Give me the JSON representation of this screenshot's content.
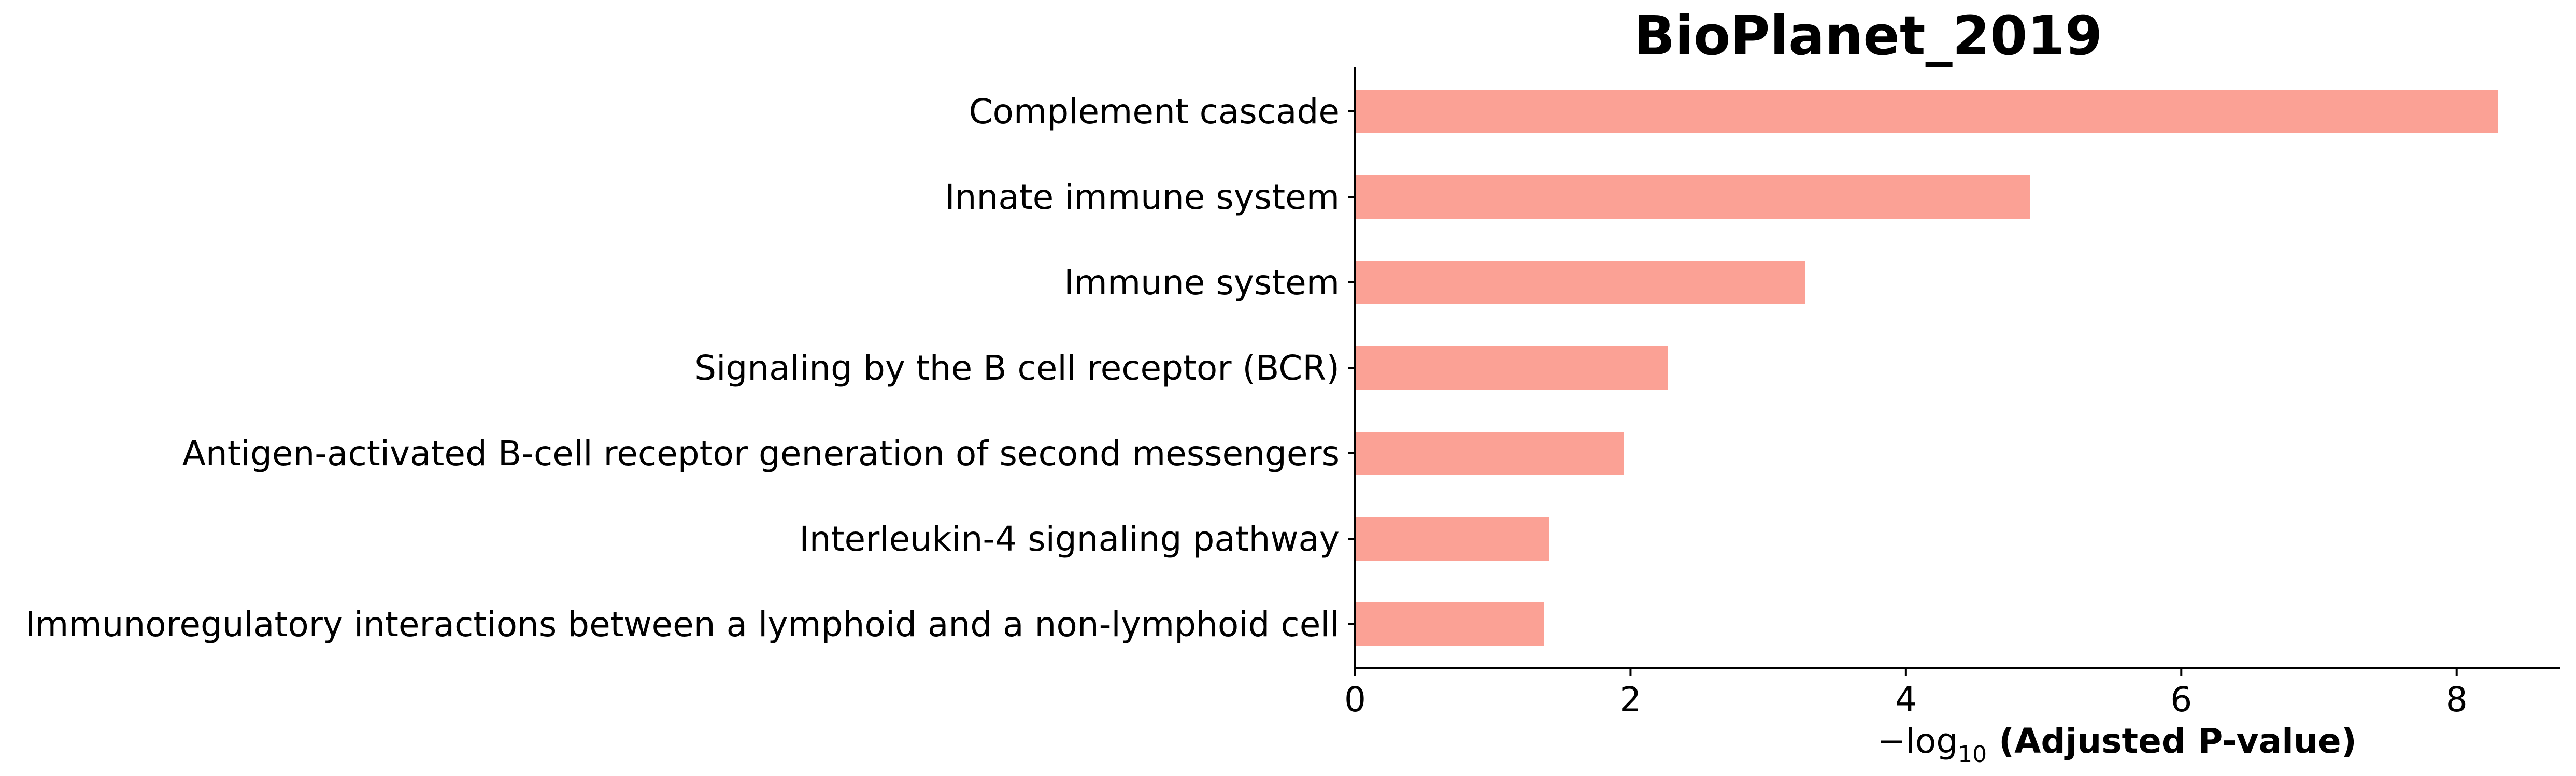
{
  "chart_data": {
    "type": "bar",
    "orientation": "horizontal",
    "title": "BioPlanet_2019",
    "categories": [
      "Complement cascade",
      "Innate immune system",
      "Immune system",
      "Signaling by the B cell receptor (BCR)",
      "Antigen-activated B-cell receptor generation of second messengers",
      "Interleukin-4 signaling pathway",
      "Immunoregulatory interactions between a lymphoid and a non-lymphoid cell"
    ],
    "values": [
      8.3,
      4.9,
      3.27,
      2.27,
      1.95,
      1.41,
      1.37
    ],
    "xlabel_prefix": "−log",
    "xlabel_sub": "10",
    "xlabel_main": " (Adjusted P-value)",
    "xlim": [
      0,
      8.75
    ],
    "xticks": [
      0,
      2,
      4,
      6,
      8
    ],
    "bar_color": "#fba195",
    "grid": false,
    "legend": "none"
  }
}
